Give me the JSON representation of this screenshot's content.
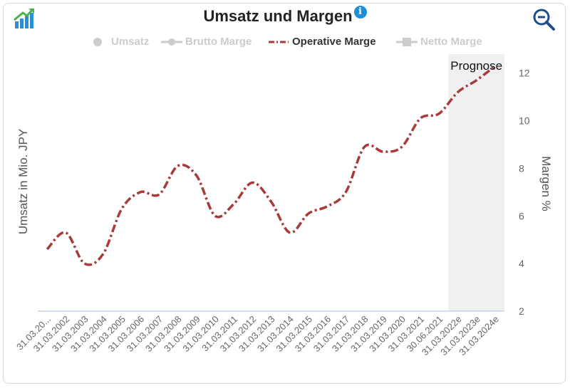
{
  "header": {
    "title": "Umsatz und Margen",
    "info_icon": "info-icon",
    "chart_icon": "chart-growth-icon",
    "zoom_icon": "zoom-out-icon"
  },
  "legend": [
    {
      "name": "Umsatz",
      "active": false,
      "symbol": "dot"
    },
    {
      "name": "Brutto Marge",
      "active": false,
      "symbol": "line-dot"
    },
    {
      "name": "Operative Marge",
      "active": true,
      "symbol": "dashdot"
    },
    {
      "name": "Netto Marge",
      "active": false,
      "symbol": "line-square"
    }
  ],
  "colors": {
    "series": "#a83a3a",
    "forecast_band": "#f0f0f0",
    "baseline": "#c8d2e8",
    "axis_text": "#666666",
    "legend_inactive": "#cccccc"
  },
  "chart_data": {
    "type": "line",
    "title": "Umsatz und Margen",
    "ylabel_left": "Umsatz in Mio. JPY",
    "ylabel_right": "Margen %",
    "y_right_range": [
      2,
      12.8
    ],
    "y_right_ticks": [
      2,
      4,
      6,
      8,
      10,
      12
    ],
    "forecast_label": "Prognose",
    "forecast_start_index": 22,
    "categories": [
      "31.03.20...",
      "31.03.2002",
      "31.03.2003",
      "31.03.2004",
      "31.03.2005",
      "31.03.2006",
      "31.03.2007",
      "31.03.2008",
      "31.03.2009",
      "31.03.2010",
      "31.03.2011",
      "31.03.2012",
      "31.03.2013",
      "31.03.2014",
      "31.03.2015",
      "31.03.2016",
      "31.03.2017",
      "31.03.2018",
      "31.03.2019",
      "31.03.2020",
      "31.03.2021",
      "30.06.2021",
      "31.03.2022e",
      "31.03.2023e",
      "31.03.2024e"
    ],
    "series": [
      {
        "name": "Operative Marge",
        "values": [
          4.6,
          5.3,
          4.0,
          4.4,
          6.3,
          7.0,
          6.9,
          8.1,
          7.7,
          6.0,
          6.5,
          7.4,
          6.6,
          5.3,
          6.1,
          6.4,
          7.0,
          8.9,
          8.7,
          8.9,
          10.1,
          10.3,
          11.2,
          11.7,
          12.3
        ]
      }
    ],
    "grid": false,
    "legend_position": "top"
  }
}
